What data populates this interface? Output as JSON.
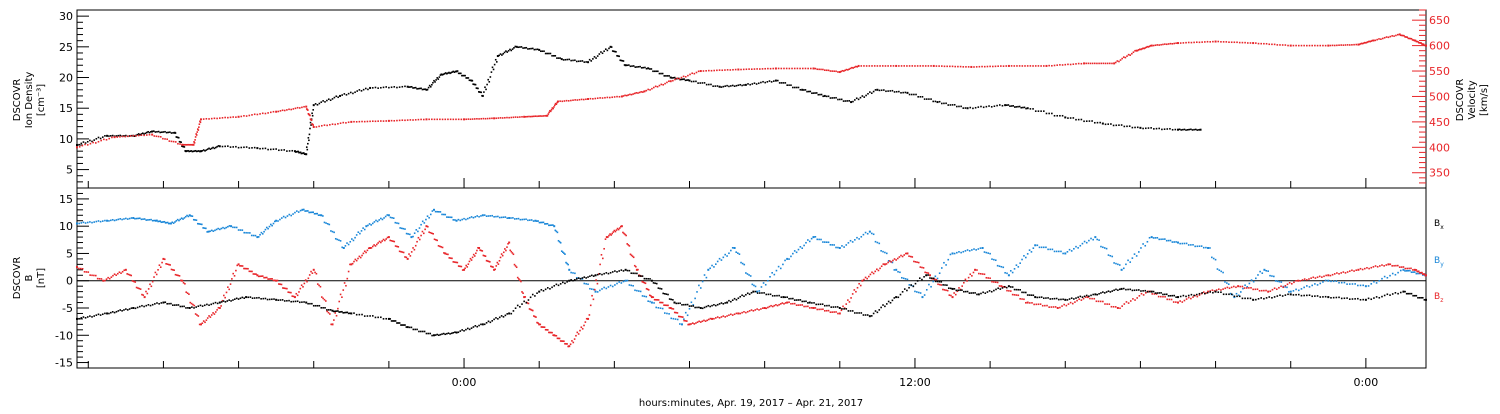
{
  "colors": {
    "black": "#000000",
    "red": "#e8262a",
    "blue": "#1a87d8"
  },
  "xlabel": "hours:minutes, Apr. 19, 2017 – Apr. 21, 2017",
  "chart_data": [
    {
      "type": "scatter",
      "panel": "top",
      "ylabel_left": [
        "DSCOVR",
        "Ion Density",
        "[cm⁻³]"
      ],
      "ylabel_right": [
        "DSCOVR",
        "Velocity",
        "[km/s]"
      ],
      "xlim_hours": [
        -10.3,
        25.6
      ],
      "ylim_left": [
        2,
        31
      ],
      "ylim_right": [
        320,
        670
      ],
      "yticks_left": [
        "5",
        "10",
        "15",
        "20",
        "25",
        "30"
      ],
      "yticks_right": [
        "350",
        "400",
        "450",
        "500",
        "550",
        "600",
        "650"
      ],
      "grid": false,
      "series": [
        {
          "axis": "left",
          "color": "#000000",
          "points": [
            [
              -10.3,
              9.0
            ],
            [
              -9.5,
              10.5
            ],
            [
              -8.8,
              10.5
            ],
            [
              -8.3,
              11.2
            ],
            [
              -7.7,
              11.0
            ],
            [
              -7.4,
              8.0
            ],
            [
              -7.0,
              8.0
            ],
            [
              -6.5,
              8.8
            ],
            [
              -5.5,
              8.5
            ],
            [
              -4.5,
              8.0
            ],
            [
              -4.2,
              7.5
            ],
            [
              -4.0,
              15.5
            ],
            [
              -3.3,
              17.0
            ],
            [
              -2.5,
              18.3
            ],
            [
              -1.5,
              18.5
            ],
            [
              -1.0,
              18.0
            ],
            [
              -0.6,
              20.5
            ],
            [
              -0.2,
              21.0
            ],
            [
              0.2,
              19.5
            ],
            [
              0.5,
              17.0
            ],
            [
              0.9,
              23.5
            ],
            [
              1.4,
              25.0
            ],
            [
              2.0,
              24.5
            ],
            [
              2.6,
              23.0
            ],
            [
              3.3,
              22.5
            ],
            [
              3.9,
              25.0
            ],
            [
              4.3,
              22.0
            ],
            [
              4.9,
              21.5
            ],
            [
              5.5,
              20.0
            ],
            [
              6.0,
              19.5
            ],
            [
              6.8,
              18.5
            ],
            [
              7.5,
              18.8
            ],
            [
              8.3,
              19.5
            ],
            [
              9.0,
              18.0
            ],
            [
              9.6,
              17.0
            ],
            [
              10.3,
              16.0
            ],
            [
              11.0,
              18.0
            ],
            [
              11.8,
              17.5
            ],
            [
              12.6,
              16.0
            ],
            [
              13.4,
              15.0
            ],
            [
              14.4,
              15.5
            ],
            [
              15.0,
              15.0
            ],
            [
              16.0,
              13.5
            ],
            [
              17.0,
              12.5
            ],
            [
              18.0,
              11.8
            ],
            [
              19.0,
              11.5
            ],
            [
              19.6,
              11.5
            ]
          ]
        },
        {
          "axis": "right",
          "color": "#e8262a",
          "points": [
            [
              -10.3,
              400
            ],
            [
              -9.3,
              420
            ],
            [
              -8.3,
              425
            ],
            [
              -7.5,
              405
            ],
            [
              -7.2,
              405
            ],
            [
              -7.0,
              455
            ],
            [
              -6.0,
              460
            ],
            [
              -5.0,
              470
            ],
            [
              -4.2,
              480
            ],
            [
              -4.0,
              440
            ],
            [
              -3.0,
              450
            ],
            [
              -2.0,
              452
            ],
            [
              -1.0,
              455
            ],
            [
              0.0,
              455
            ],
            [
              0.8,
              457
            ],
            [
              1.6,
              460
            ],
            [
              2.2,
              462
            ],
            [
              2.5,
              490
            ],
            [
              3.3,
              495
            ],
            [
              4.2,
              500
            ],
            [
              4.8,
              510
            ],
            [
              5.5,
              530
            ],
            [
              6.3,
              550
            ],
            [
              7.3,
              553
            ],
            [
              8.3,
              555
            ],
            [
              9.3,
              555
            ],
            [
              10.0,
              548
            ],
            [
              10.5,
              560
            ],
            [
              11.5,
              560
            ],
            [
              12.5,
              560
            ],
            [
              13.5,
              558
            ],
            [
              14.5,
              560
            ],
            [
              15.5,
              560
            ],
            [
              16.5,
              565
            ],
            [
              17.3,
              565
            ],
            [
              17.9,
              590
            ],
            [
              18.3,
              600
            ],
            [
              19.0,
              605
            ],
            [
              20.0,
              608
            ],
            [
              21.0,
              605
            ],
            [
              22.0,
              600
            ],
            [
              23.0,
              600
            ],
            [
              23.8,
              602
            ],
            [
              24.2,
              610
            ],
            [
              24.9,
              622
            ],
            [
              25.3,
              610
            ],
            [
              25.6,
              600
            ]
          ]
        }
      ]
    },
    {
      "type": "scatter",
      "panel": "bottom",
      "ylabel_left": [
        "DSCOVR",
        "B",
        "[nT]"
      ],
      "xlim_hours": [
        -10.3,
        25.6
      ],
      "ylim": [
        -16,
        17
      ],
      "yticks": [
        "-15",
        "-10",
        "-5",
        "0",
        "5",
        "10",
        "15"
      ],
      "xtick_labels": [
        "0:00",
        "12:00",
        "0:00"
      ],
      "xtick_hours": [
        0,
        12,
        24
      ],
      "grid": false,
      "legend_position": "right",
      "series": [
        {
          "name": "B",
          "subscript": "x",
          "color": "#000000",
          "points": [
            [
              -10.3,
              -7.0
            ],
            [
              -9.5,
              -6.0
            ],
            [
              -8.8,
              -5.0
            ],
            [
              -8.0,
              -4.0
            ],
            [
              -7.3,
              -5.0
            ],
            [
              -6.5,
              -4.0
            ],
            [
              -5.8,
              -3.0
            ],
            [
              -5.0,
              -3.5
            ],
            [
              -4.2,
              -4.0
            ],
            [
              -3.5,
              -5.5
            ],
            [
              -3.0,
              -6.0
            ],
            [
              -2.0,
              -7.0
            ],
            [
              -1.5,
              -8.5
            ],
            [
              -0.8,
              -10.0
            ],
            [
              -0.2,
              -9.5
            ],
            [
              0.5,
              -8.0
            ],
            [
              1.2,
              -6.0
            ],
            [
              2.0,
              -2.0
            ],
            [
              2.8,
              0.0
            ],
            [
              3.5,
              1.0
            ],
            [
              4.3,
              2.0
            ],
            [
              5.0,
              0.0
            ],
            [
              5.6,
              -4.0
            ],
            [
              6.3,
              -5.0
            ],
            [
              7.0,
              -4.0
            ],
            [
              7.7,
              -2.0
            ],
            [
              8.5,
              -3.0
            ],
            [
              9.2,
              -4.0
            ],
            [
              10.0,
              -5.0
            ],
            [
              10.8,
              -6.5
            ],
            [
              11.5,
              -3.0
            ],
            [
              12.3,
              1.0
            ],
            [
              13.0,
              -1.5
            ],
            [
              13.7,
              -2.5
            ],
            [
              14.5,
              -1.0
            ],
            [
              15.2,
              -3.0
            ],
            [
              16.0,
              -3.5
            ],
            [
              16.8,
              -2.5
            ],
            [
              17.5,
              -1.5
            ],
            [
              18.3,
              -2.0
            ],
            [
              19.0,
              -3.0
            ],
            [
              20.0,
              -2.0
            ],
            [
              21.0,
              -3.5
            ],
            [
              22.0,
              -2.5
            ],
            [
              23.0,
              -3.0
            ],
            [
              24.0,
              -3.5
            ],
            [
              25.0,
              -2.0
            ],
            [
              25.6,
              -3.5
            ]
          ]
        },
        {
          "name": "B",
          "subscript": "y",
          "color": "#1a87d8",
          "points": [
            [
              -10.3,
              10.5
            ],
            [
              -9.5,
              11.0
            ],
            [
              -8.8,
              11.5
            ],
            [
              -8.2,
              11.0
            ],
            [
              -7.8,
              10.5
            ],
            [
              -7.3,
              12.0
            ],
            [
              -6.8,
              9.0
            ],
            [
              -6.2,
              10.0
            ],
            [
              -5.5,
              8.0
            ],
            [
              -5.0,
              11.0
            ],
            [
              -4.3,
              13.0
            ],
            [
              -3.8,
              12.0
            ],
            [
              -3.2,
              6.0
            ],
            [
              -2.6,
              10.0
            ],
            [
              -2.0,
              12.0
            ],
            [
              -1.4,
              8.0
            ],
            [
              -0.8,
              13.0
            ],
            [
              -0.2,
              11.0
            ],
            [
              0.5,
              12.0
            ],
            [
              1.2,
              11.5
            ],
            [
              1.9,
              11.0
            ],
            [
              2.4,
              10.0
            ],
            [
              2.8,
              2.0
            ],
            [
              3.5,
              -2.0
            ],
            [
              4.3,
              0.0
            ],
            [
              5.0,
              -4.0
            ],
            [
              5.8,
              -8.0
            ],
            [
              6.5,
              2.0
            ],
            [
              7.2,
              6.0
            ],
            [
              7.8,
              -2.0
            ],
            [
              8.6,
              4.0
            ],
            [
              9.3,
              8.0
            ],
            [
              10.0,
              6.0
            ],
            [
              10.8,
              9.0
            ],
            [
              11.5,
              2.0
            ],
            [
              12.2,
              -3.0
            ],
            [
              13.0,
              5.0
            ],
            [
              13.8,
              6.0
            ],
            [
              14.5,
              1.0
            ],
            [
              15.2,
              6.5
            ],
            [
              16.0,
              5.0
            ],
            [
              16.8,
              8.0
            ],
            [
              17.5,
              2.0
            ],
            [
              18.3,
              8.0
            ],
            [
              19.0,
              7.0
            ],
            [
              19.8,
              6.0
            ],
            [
              20.5,
              -3.0
            ],
            [
              21.3,
              2.0
            ],
            [
              22.0,
              -2.0
            ],
            [
              23.0,
              0.0
            ],
            [
              24.0,
              -1.0
            ],
            [
              25.0,
              2.0
            ],
            [
              25.6,
              1.0
            ]
          ]
        },
        {
          "name": "B",
          "subscript": "z",
          "color": "#e8262a",
          "points": [
            [
              -10.3,
              2.5
            ],
            [
              -9.6,
              0.0
            ],
            [
              -9.0,
              2.0
            ],
            [
              -8.5,
              -3.0
            ],
            [
              -8.0,
              4.0
            ],
            [
              -7.5,
              0.0
            ],
            [
              -7.0,
              -8.0
            ],
            [
              -6.5,
              -5.0
            ],
            [
              -6.0,
              3.0
            ],
            [
              -5.5,
              1.0
            ],
            [
              -5.0,
              0.0
            ],
            [
              -4.5,
              -3.0
            ],
            [
              -4.0,
              2.0
            ],
            [
              -3.5,
              -8.0
            ],
            [
              -3.0,
              3.0
            ],
            [
              -2.5,
              6.0
            ],
            [
              -2.0,
              8.0
            ],
            [
              -1.5,
              4.0
            ],
            [
              -1.0,
              10.0
            ],
            [
              -0.5,
              5.0
            ],
            [
              0.0,
              2.0
            ],
            [
              0.4,
              6.0
            ],
            [
              0.8,
              2.0
            ],
            [
              1.2,
              7.0
            ],
            [
              1.6,
              -3.0
            ],
            [
              2.0,
              -8.0
            ],
            [
              2.4,
              -10.0
            ],
            [
              2.8,
              -12.0
            ],
            [
              3.3,
              -7.0
            ],
            [
              3.8,
              8.0
            ],
            [
              4.2,
              10.0
            ],
            [
              4.6,
              2.0
            ],
            [
              5.0,
              -3.0
            ],
            [
              5.5,
              -5.0
            ],
            [
              6.0,
              -8.0
            ],
            [
              6.6,
              -7.0
            ],
            [
              7.3,
              -6.0
            ],
            [
              8.0,
              -5.0
            ],
            [
              8.6,
              -4.0
            ],
            [
              9.3,
              -5.0
            ],
            [
              10.0,
              -6.0
            ],
            [
              10.6,
              0.0
            ],
            [
              11.2,
              3.0
            ],
            [
              11.8,
              5.0
            ],
            [
              12.4,
              1.0
            ],
            [
              13.0,
              -3.0
            ],
            [
              13.6,
              2.0
            ],
            [
              14.3,
              -1.0
            ],
            [
              15.0,
              -4.0
            ],
            [
              15.8,
              -5.0
            ],
            [
              16.6,
              -3.0
            ],
            [
              17.4,
              -5.0
            ],
            [
              18.2,
              -2.0
            ],
            [
              19.0,
              -4.0
            ],
            [
              19.8,
              -2.0
            ],
            [
              20.6,
              -1.0
            ],
            [
              21.4,
              -2.0
            ],
            [
              22.2,
              0.0
            ],
            [
              23.0,
              1.0
            ],
            [
              23.8,
              2.0
            ],
            [
              24.6,
              3.0
            ],
            [
              25.3,
              2.0
            ],
            [
              25.6,
              1.0
            ]
          ]
        }
      ]
    }
  ]
}
